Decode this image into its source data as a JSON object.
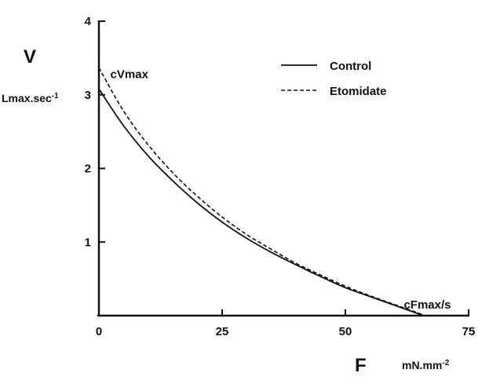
{
  "chart_data": {
    "type": "line",
    "title": "",
    "xlabel": "F",
    "xunit": "mN.mm-2",
    "ylabel": "V",
    "yunit": "Lmax.sec-1",
    "xlim": [
      0,
      75
    ],
    "ylim": [
      0,
      4
    ],
    "xticks": [
      0,
      25,
      50,
      75
    ],
    "yticks": [
      1,
      2,
      3,
      4
    ],
    "grid": false,
    "legend_position": "top-right",
    "annotations": [
      {
        "text": "cVmax",
        "x": 2,
        "y": 3.28
      },
      {
        "text": "cFmax/s",
        "x": 66,
        "y": 0.15
      }
    ],
    "series": [
      {
        "name": "Control",
        "style": "solid",
        "x": [
          0,
          5,
          10,
          15,
          20,
          25,
          30,
          35,
          40,
          45,
          50,
          55,
          60,
          65,
          66
        ],
        "y": [
          3.08,
          2.58,
          2.17,
          1.83,
          1.53,
          1.27,
          1.05,
          0.86,
          0.69,
          0.53,
          0.38,
          0.26,
          0.14,
          0.02,
          0.0
        ]
      },
      {
        "name": "Etomidate",
        "style": "dashed",
        "x": [
          0,
          5,
          10,
          15,
          20,
          25,
          30,
          35,
          40,
          45,
          50,
          55,
          60,
          65,
          66
        ],
        "y": [
          3.37,
          2.78,
          2.32,
          1.94,
          1.62,
          1.34,
          1.1,
          0.9,
          0.71,
          0.55,
          0.4,
          0.27,
          0.15,
          0.03,
          0.0
        ]
      }
    ]
  },
  "ytick_labels": [
    "1",
    "2",
    "3",
    "4"
  ],
  "xtick_labels": [
    "0",
    "25",
    "50",
    "75"
  ],
  "unit_sup": "-1",
  "unit_x_sup": "-2",
  "yunit_base": "Lmax.sec",
  "xunit_base": "mN.mm",
  "legend": {
    "control_label": "Control",
    "etomidate_label": "Etomidate"
  }
}
